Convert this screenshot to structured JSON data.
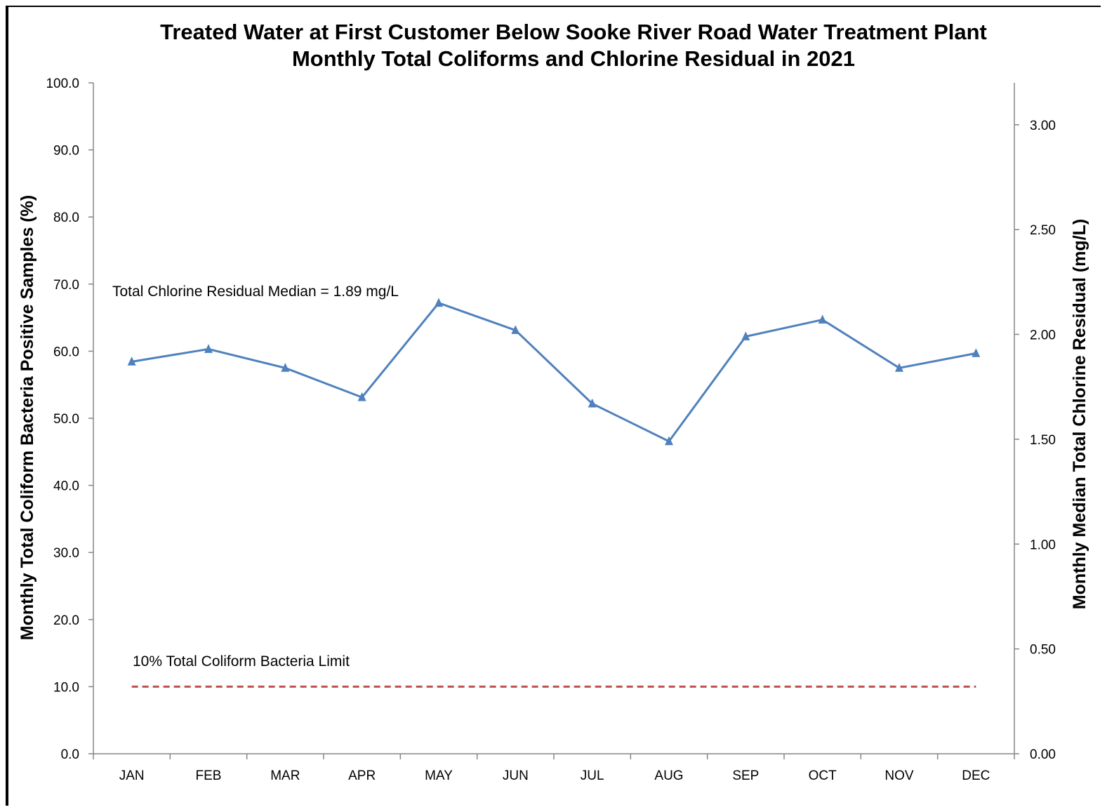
{
  "chart_data": {
    "type": "line",
    "title": "Treated Water at First Customer Below Sooke River Road Water Treatment Plant",
    "subtitle": "Monthly Total Coliforms and Chlorine Residual in 2021",
    "ylabel_left": "Monthly  Total Coliform Bacteria Positive Samples (%)",
    "ylabel_right": "Monthly Median Total Chlorine Residual (mg/L)",
    "categories": [
      "JAN",
      "FEB",
      "MAR",
      "APR",
      "MAY",
      "JUN",
      "JUL",
      "AUG",
      "SEP",
      "OCT",
      "NOV",
      "DEC"
    ],
    "ylim_left": [
      0,
      100
    ],
    "ylim_right": [
      0,
      3.2
    ],
    "yticks_left": [
      "0.0",
      "10.0",
      "20.0",
      "30.0",
      "40.0",
      "50.0",
      "60.0",
      "70.0",
      "80.0",
      "90.0",
      "100.0"
    ],
    "yticks_right": [
      "0.00",
      "0.50",
      "1.00",
      "1.50",
      "2.00",
      "2.50",
      "3.00"
    ],
    "series": [
      {
        "axis": "right",
        "color": "#4f81bd",
        "marker": "triangle",
        "values": [
          1.87,
          1.93,
          1.84,
          1.7,
          2.15,
          2.02,
          1.67,
          1.49,
          1.99,
          2.07,
          1.84,
          1.91
        ]
      },
      {
        "axis": "left",
        "color": "#c0504d",
        "style": "dashed",
        "values": [
          10,
          10,
          10,
          10,
          10,
          10,
          10,
          10,
          10,
          10,
          10,
          10
        ]
      }
    ],
    "annotations": {
      "chlorine_median": "Total Chlorine Residual Median = 1.89 mg/L",
      "coliform_limit": "10% Total Coliform Bacteria Limit"
    },
    "grid": false,
    "legend": "none"
  }
}
